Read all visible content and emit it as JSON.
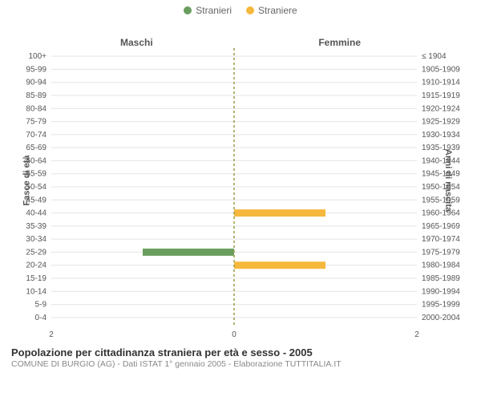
{
  "legend": {
    "male_label": "Stranieri",
    "female_label": "Straniere",
    "male_color": "#6a9e5e",
    "female_color": "#f5b83d"
  },
  "columns": {
    "left_title": "Maschi",
    "right_title": "Femmine"
  },
  "y_axis": {
    "left_title": "Fasce di età",
    "right_title": "Anni di nascita"
  },
  "title": "Popolazione per cittadinanza straniera per età e sesso - 2005",
  "subtitle": "COMUNE DI BURGIO (AG) - Dati ISTAT 1° gennaio 2005 - Elaborazione TUTTITALIA.IT",
  "chart": {
    "type": "population-pyramid",
    "x_max": 2,
    "x_ticks": [
      2,
      0,
      2
    ],
    "background_color": "#ffffff",
    "grid_color": "#e4e4e4",
    "centerline_color": "#9a9a40",
    "centerline_dash": "3,3",
    "bar_height_ratio": 0.55,
    "label_fontsize": 10,
    "tick_fontsize": 10,
    "label_color": "#555555",
    "rows": [
      {
        "age": "100+",
        "birth": "≤ 1904",
        "m": 0,
        "f": 0
      },
      {
        "age": "95-99",
        "birth": "1905-1909",
        "m": 0,
        "f": 0
      },
      {
        "age": "90-94",
        "birth": "1910-1914",
        "m": 0,
        "f": 0
      },
      {
        "age": "85-89",
        "birth": "1915-1919",
        "m": 0,
        "f": 0
      },
      {
        "age": "80-84",
        "birth": "1920-1924",
        "m": 0,
        "f": 0
      },
      {
        "age": "75-79",
        "birth": "1925-1929",
        "m": 0,
        "f": 0
      },
      {
        "age": "70-74",
        "birth": "1930-1934",
        "m": 0,
        "f": 0
      },
      {
        "age": "65-69",
        "birth": "1935-1939",
        "m": 0,
        "f": 0
      },
      {
        "age": "60-64",
        "birth": "1940-1944",
        "m": 0,
        "f": 0
      },
      {
        "age": "55-59",
        "birth": "1945-1949",
        "m": 0,
        "f": 0
      },
      {
        "age": "50-54",
        "birth": "1950-1954",
        "m": 0,
        "f": 0
      },
      {
        "age": "45-49",
        "birth": "1955-1959",
        "m": 0,
        "f": 0
      },
      {
        "age": "40-44",
        "birth": "1960-1964",
        "m": 0,
        "f": 1
      },
      {
        "age": "35-39",
        "birth": "1965-1969",
        "m": 0,
        "f": 0
      },
      {
        "age": "30-34",
        "birth": "1970-1974",
        "m": 0,
        "f": 0
      },
      {
        "age": "25-29",
        "birth": "1975-1979",
        "m": 1,
        "f": 0
      },
      {
        "age": "20-24",
        "birth": "1980-1984",
        "m": 0,
        "f": 1
      },
      {
        "age": "15-19",
        "birth": "1985-1989",
        "m": 0,
        "f": 0
      },
      {
        "age": "10-14",
        "birth": "1990-1994",
        "m": 0,
        "f": 0
      },
      {
        "age": "5-9",
        "birth": "1995-1999",
        "m": 0,
        "f": 0
      },
      {
        "age": "0-4",
        "birth": "2000-2004",
        "m": 0,
        "f": 0
      }
    ]
  }
}
